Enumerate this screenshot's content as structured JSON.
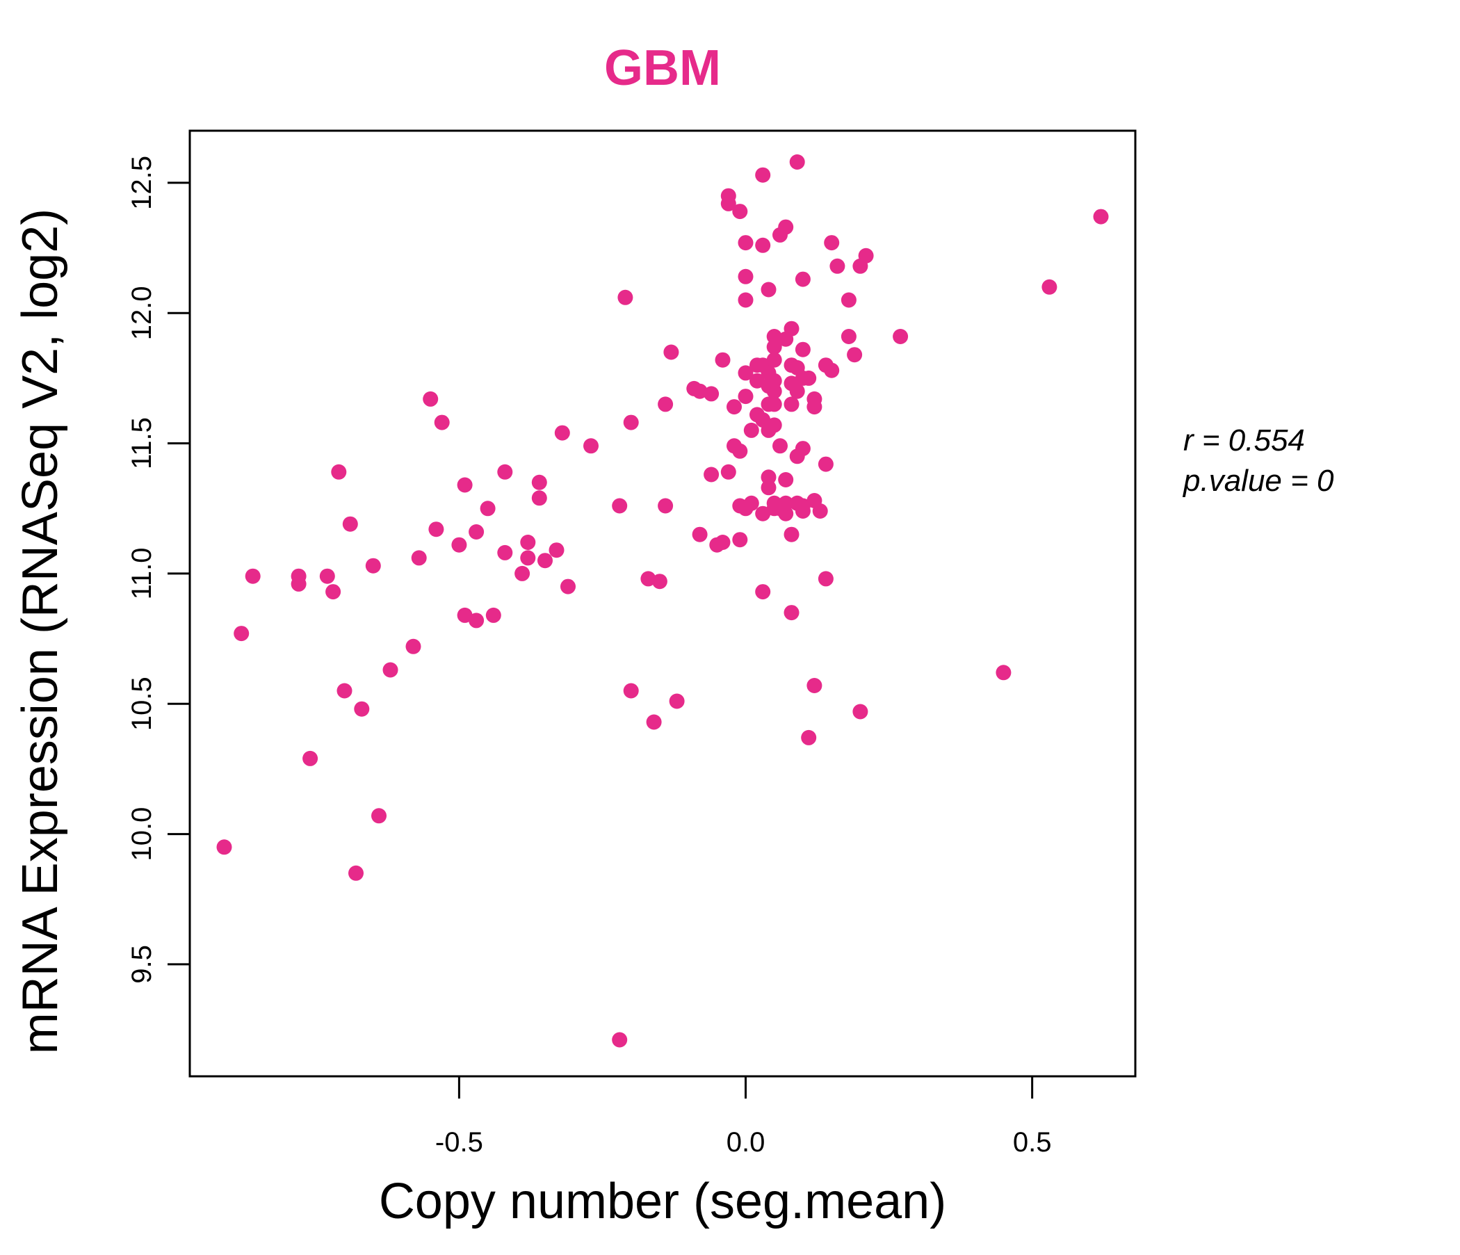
{
  "accent_color": "#e62a8a",
  "chart_data": {
    "type": "scatter",
    "title": "GBM",
    "xlabel": "Copy number (seg.mean)",
    "ylabel": "mRNA Expression (RNASeq V2, log2)",
    "xlim": [
      -0.97,
      0.68
    ],
    "ylim": [
      9.07,
      12.7
    ],
    "xticks": [
      -0.5,
      0.0,
      0.5
    ],
    "xtick_labels": [
      "-0.5",
      "0.0",
      "0.5"
    ],
    "yticks": [
      9.5,
      10.0,
      10.5,
      11.0,
      11.5,
      12.0,
      12.5
    ],
    "ytick_labels": [
      "9.5",
      "10.0",
      "10.5",
      "11.0",
      "11.5",
      "12.0",
      "12.5"
    ],
    "grid": false,
    "point_color": "#e62a8a",
    "stats": {
      "r_label": "r = 0.554",
      "p_label": "p.value = 0"
    },
    "points": [
      [
        -0.91,
        9.95
      ],
      [
        -0.88,
        10.77
      ],
      [
        -0.86,
        10.99
      ],
      [
        -0.78,
        10.99
      ],
      [
        -0.78,
        10.96
      ],
      [
        -0.76,
        10.29
      ],
      [
        -0.73,
        10.99
      ],
      [
        -0.72,
        10.93
      ],
      [
        -0.71,
        11.39
      ],
      [
        -0.7,
        10.55
      ],
      [
        -0.69,
        11.19
      ],
      [
        -0.68,
        9.85
      ],
      [
        -0.67,
        10.48
      ],
      [
        -0.65,
        11.03
      ],
      [
        -0.64,
        10.07
      ],
      [
        -0.62,
        10.63
      ],
      [
        -0.58,
        10.72
      ],
      [
        -0.57,
        11.06
      ],
      [
        -0.55,
        11.67
      ],
      [
        -0.54,
        11.17
      ],
      [
        -0.53,
        11.58
      ],
      [
        -0.5,
        11.11
      ],
      [
        -0.49,
        11.34
      ],
      [
        -0.49,
        10.84
      ],
      [
        -0.47,
        10.82
      ],
      [
        -0.47,
        11.16
      ],
      [
        -0.45,
        11.25
      ],
      [
        -0.44,
        10.84
      ],
      [
        -0.42,
        11.39
      ],
      [
        -0.42,
        11.08
      ],
      [
        -0.39,
        11.0
      ],
      [
        -0.38,
        11.12
      ],
      [
        -0.38,
        11.06
      ],
      [
        -0.36,
        11.35
      ],
      [
        -0.36,
        11.29
      ],
      [
        -0.35,
        11.05
      ],
      [
        -0.33,
        11.09
      ],
      [
        -0.32,
        11.54
      ],
      [
        -0.31,
        10.95
      ],
      [
        -0.27,
        11.49
      ],
      [
        -0.22,
        9.21
      ],
      [
        -0.22,
        11.26
      ],
      [
        -0.21,
        12.06
      ],
      [
        -0.2,
        10.55
      ],
      [
        -0.2,
        11.58
      ],
      [
        -0.17,
        10.98
      ],
      [
        -0.16,
        10.43
      ],
      [
        -0.15,
        10.97
      ],
      [
        -0.14,
        11.65
      ],
      [
        -0.14,
        11.26
      ],
      [
        -0.13,
        11.85
      ],
      [
        -0.12,
        10.51
      ],
      [
        -0.09,
        11.71
      ],
      [
        -0.08,
        11.7
      ],
      [
        -0.08,
        11.15
      ],
      [
        -0.06,
        11.69
      ],
      [
        -0.06,
        11.38
      ],
      [
        -0.05,
        11.11
      ],
      [
        -0.04,
        11.12
      ],
      [
        -0.04,
        11.82
      ],
      [
        -0.03,
        12.45
      ],
      [
        -0.03,
        12.42
      ],
      [
        -0.03,
        11.39
      ],
      [
        -0.02,
        11.49
      ],
      [
        -0.02,
        11.64
      ],
      [
        -0.01,
        12.39
      ],
      [
        -0.01,
        11.26
      ],
      [
        -0.01,
        11.47
      ],
      [
        -0.01,
        11.13
      ],
      [
        0.0,
        12.14
      ],
      [
        0.0,
        11.77
      ],
      [
        0.0,
        11.68
      ],
      [
        0.0,
        12.05
      ],
      [
        0.0,
        12.27
      ],
      [
        0.0,
        11.25
      ],
      [
        0.01,
        11.55
      ],
      [
        0.01,
        11.27
      ],
      [
        0.02,
        11.61
      ],
      [
        0.02,
        11.74
      ],
      [
        0.02,
        11.8
      ],
      [
        0.03,
        12.53
      ],
      [
        0.03,
        11.8
      ],
      [
        0.03,
        12.26
      ],
      [
        0.03,
        11.23
      ],
      [
        0.03,
        11.59
      ],
      [
        0.03,
        10.93
      ],
      [
        0.04,
        12.09
      ],
      [
        0.04,
        11.65
      ],
      [
        0.04,
        11.55
      ],
      [
        0.04,
        11.77
      ],
      [
        0.04,
        11.72
      ],
      [
        0.04,
        11.37
      ],
      [
        0.04,
        11.33
      ],
      [
        0.05,
        11.25
      ],
      [
        0.05,
        11.27
      ],
      [
        0.05,
        11.91
      ],
      [
        0.05,
        11.87
      ],
      [
        0.05,
        11.82
      ],
      [
        0.05,
        11.7
      ],
      [
        0.05,
        11.65
      ],
      [
        0.05,
        11.57
      ],
      [
        0.05,
        11.74
      ],
      [
        0.06,
        11.49
      ],
      [
        0.06,
        11.25
      ],
      [
        0.06,
        12.3
      ],
      [
        0.07,
        11.23
      ],
      [
        0.07,
        11.27
      ],
      [
        0.07,
        11.36
      ],
      [
        0.07,
        12.33
      ],
      [
        0.07,
        11.9
      ],
      [
        0.08,
        11.94
      ],
      [
        0.08,
        11.8
      ],
      [
        0.08,
        11.73
      ],
      [
        0.08,
        11.65
      ],
      [
        0.08,
        11.15
      ],
      [
        0.08,
        10.85
      ],
      [
        0.09,
        12.58
      ],
      [
        0.09,
        11.7
      ],
      [
        0.09,
        11.45
      ],
      [
        0.09,
        11.79
      ],
      [
        0.09,
        11.27
      ],
      [
        0.1,
        11.75
      ],
      [
        0.1,
        11.24
      ],
      [
        0.1,
        12.13
      ],
      [
        0.1,
        11.48
      ],
      [
        0.1,
        11.86
      ],
      [
        0.1,
        11.26
      ],
      [
        0.11,
        10.37
      ],
      [
        0.11,
        11.75
      ],
      [
        0.12,
        11.67
      ],
      [
        0.12,
        11.64
      ],
      [
        0.12,
        10.57
      ],
      [
        0.12,
        11.28
      ],
      [
        0.13,
        11.24
      ],
      [
        0.14,
        11.42
      ],
      [
        0.14,
        11.8
      ],
      [
        0.14,
        10.98
      ],
      [
        0.15,
        12.27
      ],
      [
        0.15,
        11.78
      ],
      [
        0.16,
        12.18
      ],
      [
        0.18,
        12.05
      ],
      [
        0.18,
        11.91
      ],
      [
        0.19,
        11.84
      ],
      [
        0.2,
        12.18
      ],
      [
        0.2,
        10.47
      ],
      [
        0.21,
        12.22
      ],
      [
        0.27,
        11.91
      ],
      [
        0.45,
        10.62
      ],
      [
        0.53,
        12.1
      ],
      [
        0.62,
        12.37
      ]
    ]
  }
}
